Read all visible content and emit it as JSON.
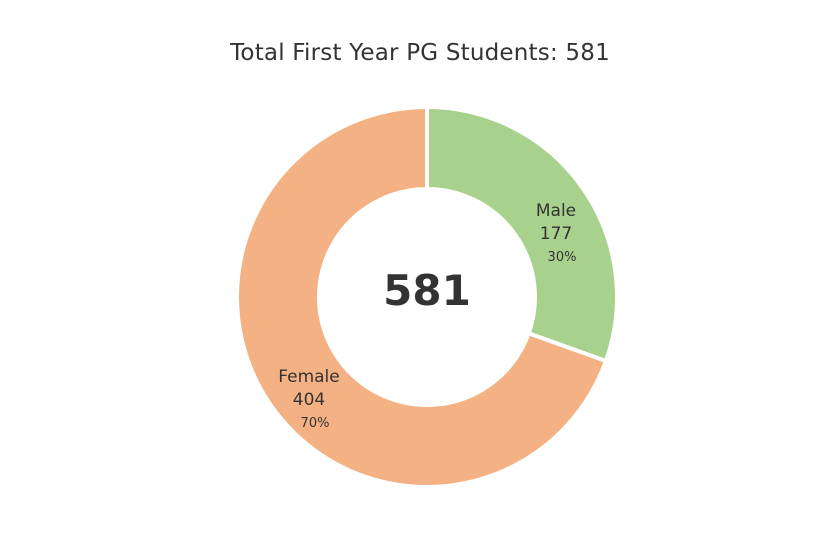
{
  "title": "Total First Year PG Students: 581",
  "center_total": "581",
  "chart_data": {
    "type": "pie",
    "title": "Total First Year PG Students: 581",
    "total": 581,
    "slices": [
      {
        "label": "Male",
        "value": 177,
        "percent": "30%",
        "color": "#a9d18e"
      },
      {
        "label": "Female",
        "value": 404,
        "percent": "70%",
        "color": "#f4b183"
      }
    ]
  }
}
